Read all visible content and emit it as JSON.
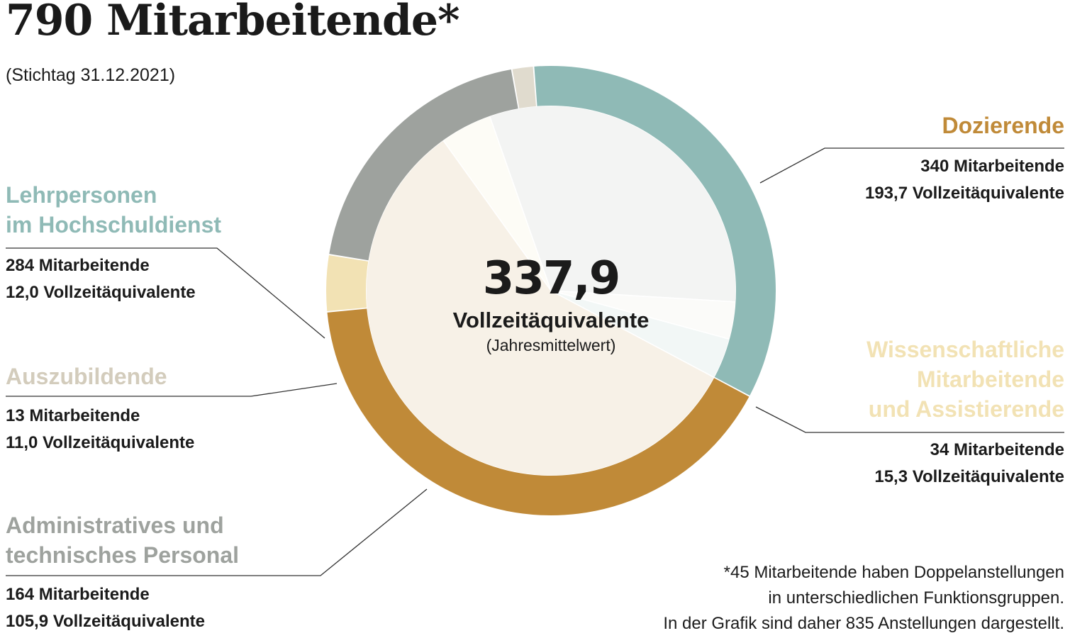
{
  "title": "790 Mitarbeitende*",
  "subtitle": "(Stichtag 31.12.2021)",
  "center": {
    "value": "337,9",
    "unit": "Vollzeitäquivalente",
    "note": "(Jahresmittelwert)"
  },
  "footnote": {
    "line1": "*45 Mitarbeitende haben Doppelanstellungen",
    "line2": "in unterschiedlichen Funktionsgruppen.",
    "line3": "In der Grafik sind daher 835 Anstellungen dargestellt."
  },
  "colors": {
    "dozierende": "#C08A38",
    "wissenschaftliche": "#F2E2B4",
    "administratives": "#9EA29E",
    "auszubildende": "#E0DBCE",
    "lehrpersonen": "#8FBAB6"
  },
  "categories": {
    "dozierende": {
      "name": "Dozierende",
      "employees": "340 Mitarbeitende",
      "fte": "193,7 Vollzeitäquivalente"
    },
    "wissenschaftliche": {
      "line1": "Wissenschaftliche",
      "line2": "Mitarbeitende",
      "line3": "und Assistierende",
      "employees": "34 Mitarbeitende",
      "fte": "15,3 Vollzeitäquivalente"
    },
    "administratives": {
      "line1": "Administratives und",
      "line2": "technisches Personal",
      "employees": "164 Mitarbeitende",
      "fte": "105,9 Vollzeitäquivalente"
    },
    "auszubildende": {
      "name": "Auszubildende",
      "employees": "13 Mitarbeitende",
      "fte": "11,0 Vollzeitäquivalente"
    },
    "lehrpersonen": {
      "line1": "Lehrpersonen",
      "line2": "im Hochschuldienst",
      "employees": "284 Mitarbeitende",
      "fte": "12,0 Vollzeitäquivalente"
    }
  },
  "chart_data": {
    "type": "pie",
    "variant": "donut with inner FTE pie",
    "outer_ring_unit": "Mitarbeitende",
    "inner_pie_unit": "Vollzeitäquivalente",
    "total_fte": 337.9,
    "slices": [
      {
        "label": "Dozierende",
        "employees": 340,
        "fte": 193.7,
        "color": "#C08A38"
      },
      {
        "label": "Wissenschaftliche Mitarbeitende und Assistierende",
        "employees": 34,
        "fte": 15.3,
        "color": "#F2E2B4"
      },
      {
        "label": "Administratives und technisches Personal",
        "employees": 164,
        "fte": 105.9,
        "color": "#9EA29E"
      },
      {
        "label": "Auszubildende",
        "employees": 13,
        "fte": 11.0,
        "color": "#E0DBCE"
      },
      {
        "label": "Lehrpersonen im Hochschuldienst",
        "employees": 284,
        "fte": 12.0,
        "color": "#8FBAB6"
      }
    ]
  }
}
